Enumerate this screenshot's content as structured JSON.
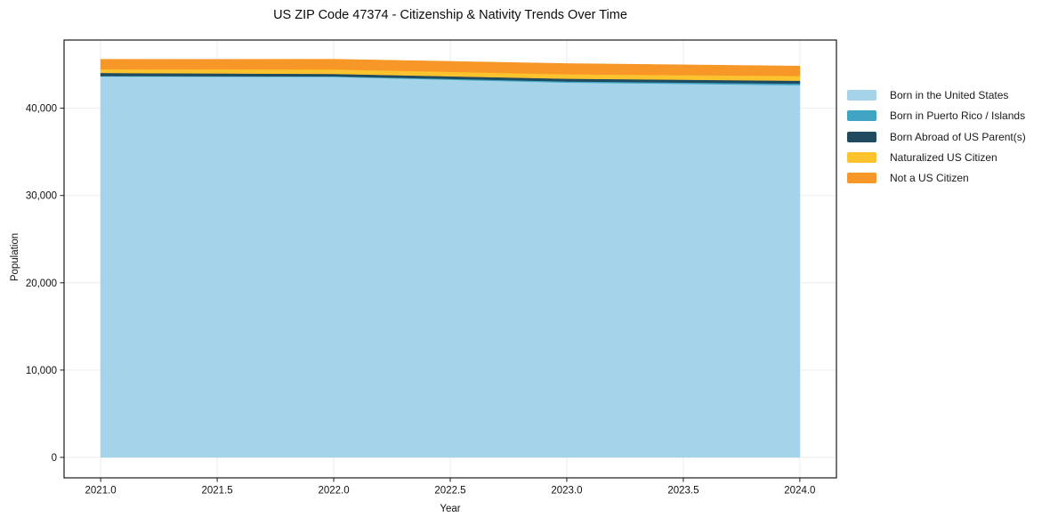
{
  "title": "US ZIP Code 47374 - Citizenship & Nativity Trends Over Time",
  "chart_data": {
    "type": "area",
    "stacked": true,
    "title": "US ZIP Code 47374 - Citizenship & Nativity Trends Over Time",
    "xlabel": "Year",
    "ylabel": "Population",
    "x": [
      2021,
      2022,
      2023,
      2024
    ],
    "series": [
      {
        "name": "Born in the United States",
        "color": "#a5d3e9",
        "values": [
          43650,
          43600,
          42950,
          42650
        ]
      },
      {
        "name": "Born in Puerto Rico / Islands",
        "color": "#3fa5c2",
        "values": [
          50,
          60,
          130,
          180
        ]
      },
      {
        "name": "Born Abroad of US Parent(s)",
        "color": "#1f4a5f",
        "values": [
          350,
          280,
          310,
          330
        ]
      },
      {
        "name": "Naturalized US Citizen",
        "color": "#fdc32f",
        "values": [
          430,
          510,
          510,
          540
        ]
      },
      {
        "name": "Not a US Citizen",
        "color": "#f79728",
        "values": [
          1120,
          1160,
          1210,
          1120
        ]
      }
    ],
    "x_ticks": {
      "values": [
        2021,
        2021.5,
        2022,
        2022.5,
        2023,
        2023.5,
        2024
      ],
      "labels": [
        "2021.0",
        "2021.5",
        "2022.0",
        "2022.5",
        "2023.0",
        "2023.5",
        "2024.0"
      ]
    },
    "y_ticks": {
      "values": [
        0,
        10000,
        20000,
        30000,
        40000
      ],
      "labels": [
        "0",
        "10,000",
        "20,000",
        "30,000",
        "40,000"
      ]
    },
    "xlim": [
      2020.843,
      2024.157
    ],
    "ylim": [
      -2345,
      47810
    ],
    "grid": true,
    "gridline_color": "#ececec",
    "axis_color": "#1a1a1a",
    "legend_position": "right-outside"
  }
}
